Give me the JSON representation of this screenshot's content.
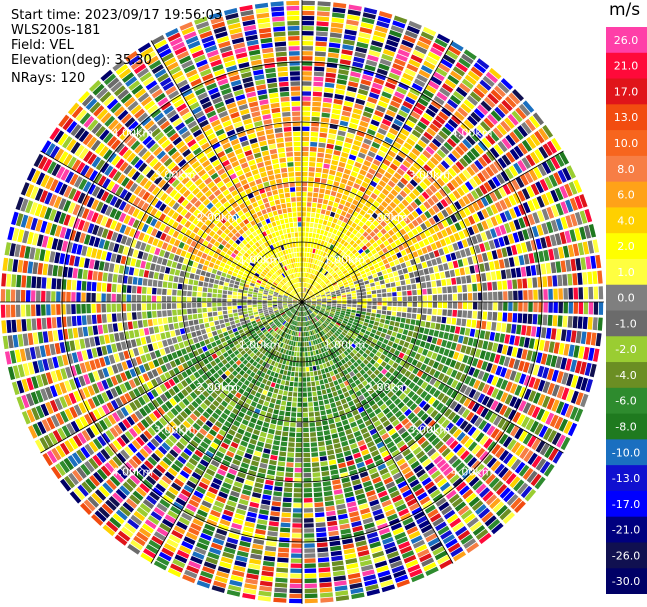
{
  "info": {
    "start_time": "Start time: 2023/09/17 19:56:03",
    "instrument": "WLS200s-181",
    "field": "Field: VEL",
    "elevation": "Elevation(deg): 35.30",
    "nrays": "NRays: 120"
  },
  "chart_data": {
    "type": "ppi",
    "field": "VEL",
    "nrays": 120,
    "range_rings_km": [
      1.0,
      2.0,
      3.0,
      4.0
    ],
    "ring_labels": [
      "1.00km",
      "2.00km",
      "3.00km",
      "4.00km"
    ],
    "spokes_deg": [
      0,
      30,
      60,
      90,
      120,
      150,
      180,
      210,
      240,
      270,
      300,
      330
    ],
    "pattern_description_regions": {
      "north": "2.0 to 6.0",
      "west": "1.0 to 0.0",
      "east": "0.0 to 1.0",
      "south": "-2.0 to -8.0"
    },
    "colorbar": {
      "unit": "m/s",
      "tick_labels": [
        "26.0",
        "21.0",
        "17.0",
        "13.0",
        "10.0",
        "8.0",
        "6.0",
        "4.0",
        "2.0",
        "1.0",
        "0.0",
        "-1.0",
        "-2.0",
        "-4.0",
        "-6.0",
        "-8.0",
        "-10.0",
        "-13.0",
        "-17.0",
        "-21.0",
        "-26.0",
        "-30.0"
      ],
      "colors": [
        "#ff3fa8",
        "#ff0a3a",
        "#e0141a",
        "#f24c10",
        "#f7651e",
        "#f77e45",
        "#ffa218",
        "#ffd000",
        "#ffff00",
        "#ffff40",
        "#7f7f7f",
        "#6b6b6b",
        "#9acd32",
        "#6b8e23",
        "#2e8b2e",
        "#1f7a1f",
        "#1a6fc0",
        "#1010d0",
        "#0000ff",
        "#00007f",
        "#101050",
        "#000066"
      ]
    }
  }
}
